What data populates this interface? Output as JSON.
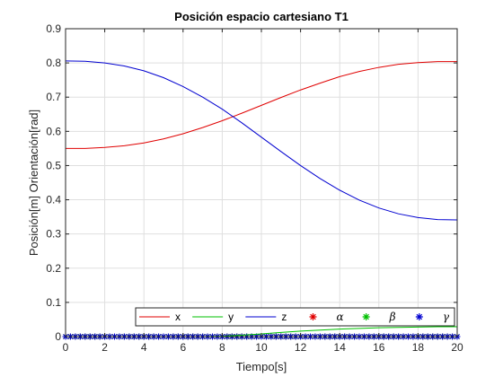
{
  "chart_data": {
    "type": "line",
    "title": "Posición espacio cartesiano T1",
    "xlabel": "Tiempo[s]",
    "ylabel": "Posición[m] Orientación[rad]",
    "xlim": [
      0,
      20
    ],
    "ylim": [
      0,
      0.9
    ],
    "xticks": [
      "0",
      "2",
      "4",
      "6",
      "8",
      "10",
      "12",
      "14",
      "16",
      "18",
      "20"
    ],
    "yticks": [
      "0",
      "0.1",
      "0.2",
      "0.3",
      "0.4",
      "0.5",
      "0.6",
      "0.7",
      "0.8",
      "0.9"
    ],
    "grid": true,
    "legend_position": "bottom",
    "x": [
      0,
      1,
      2,
      3,
      4,
      5,
      6,
      7,
      8,
      9,
      10,
      11,
      12,
      13,
      14,
      15,
      16,
      17,
      18,
      19,
      20
    ],
    "series": [
      {
        "name": "x",
        "kind": "line",
        "color": "#e00000",
        "values": [
          0.55,
          0.55,
          0.553,
          0.558,
          0.566,
          0.578,
          0.593,
          0.611,
          0.631,
          0.653,
          0.676,
          0.699,
          0.721,
          0.741,
          0.76,
          0.775,
          0.787,
          0.796,
          0.801,
          0.804,
          0.804
        ]
      },
      {
        "name": "y",
        "kind": "line",
        "color": "#00c000",
        "values": [
          0.0,
          0.0,
          0.0,
          0.0,
          0.0,
          0.0,
          0.0,
          0.0,
          0.001,
          0.004,
          0.008,
          0.012,
          0.016,
          0.019,
          0.022,
          0.024,
          0.026,
          0.027,
          0.028,
          0.029,
          0.029
        ]
      },
      {
        "name": "z",
        "kind": "line",
        "color": "#0000d0",
        "values": [
          0.806,
          0.805,
          0.8,
          0.791,
          0.777,
          0.757,
          0.731,
          0.7,
          0.665,
          0.625,
          0.583,
          0.541,
          0.5,
          0.462,
          0.428,
          0.399,
          0.376,
          0.359,
          0.348,
          0.342,
          0.341
        ]
      },
      {
        "name": "α",
        "kind": "marker",
        "marker": "*",
        "color": "#e00000",
        "values": [
          0,
          0,
          0,
          0,
          0,
          0,
          0,
          0,
          0,
          0,
          0,
          0,
          0,
          0,
          0,
          0,
          0,
          0,
          0,
          0,
          0
        ]
      },
      {
        "name": "β",
        "kind": "marker",
        "marker": "*",
        "color": "#00c000",
        "values": [
          0,
          0,
          0,
          0,
          0,
          0,
          0,
          0,
          0,
          0,
          0,
          0,
          0,
          0,
          0,
          0,
          0,
          0,
          0,
          0,
          0
        ]
      },
      {
        "name": "γ",
        "kind": "marker",
        "marker": "*",
        "color": "#0000d0",
        "values": [
          0,
          0,
          0,
          0,
          0,
          0,
          0,
          0,
          0,
          0,
          0,
          0,
          0,
          0,
          0,
          0,
          0,
          0,
          0,
          0,
          0
        ]
      }
    ]
  }
}
